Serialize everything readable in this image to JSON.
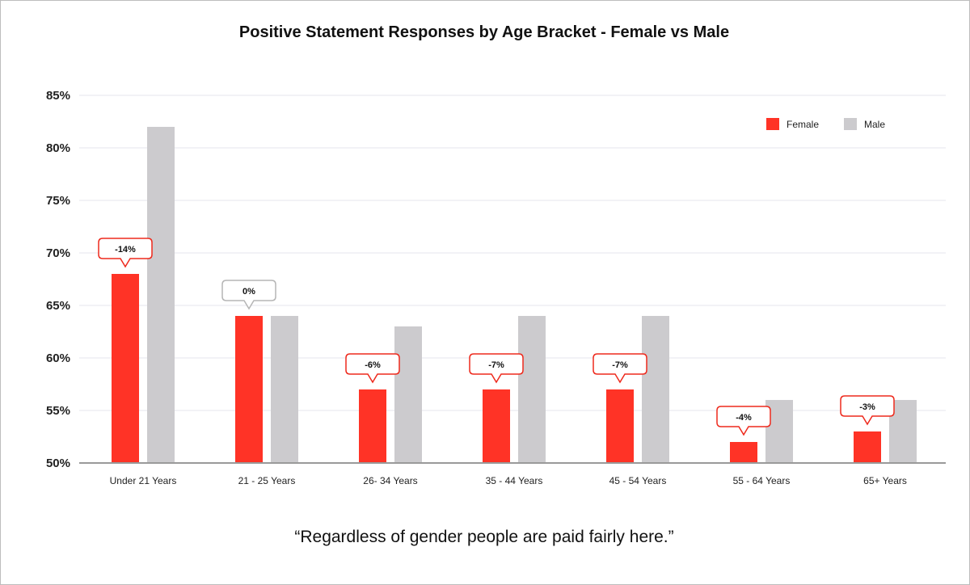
{
  "title": "Positive Statement Responses by Age Bracket - Female vs Male",
  "quote": "“Regardless of gender people are paid fairly here.”",
  "colors": {
    "female": "#ff3326",
    "male": "#cccbce",
    "callout_border_red": "#ee2a1d",
    "callout_border_gray": "#b5b5b5",
    "grid": "#e6e4ec",
    "axis": "#9a9a9a"
  },
  "chart_data": {
    "type": "bar",
    "title": "Positive Statement Responses by Age Bracket - Female vs Male",
    "xlabel": "",
    "ylabel": "",
    "ylim": [
      50,
      85
    ],
    "yticks": [
      50,
      55,
      60,
      65,
      70,
      75,
      80,
      85
    ],
    "ytick_labels": [
      "50%",
      "55%",
      "60%",
      "65%",
      "70%",
      "75%",
      "80%",
      "85%"
    ],
    "categories": [
      "Under 21 Years",
      "21 - 25 Years",
      "26- 34 Years",
      "35 - 44 Years",
      "45 - 54 Years",
      "55 - 64 Years",
      "65+ Years"
    ],
    "series": [
      {
        "name": "Female",
        "values": [
          68,
          64,
          57,
          57,
          57,
          52,
          53
        ]
      },
      {
        "name": "Male",
        "values": [
          82,
          64,
          63,
          64,
          64,
          56,
          56
        ]
      }
    ],
    "annotations": [
      "-14%",
      "0%",
      "-6%",
      "-7%",
      "-7%",
      "-4%",
      "-3%"
    ],
    "legend": "top-right",
    "grid": true
  }
}
